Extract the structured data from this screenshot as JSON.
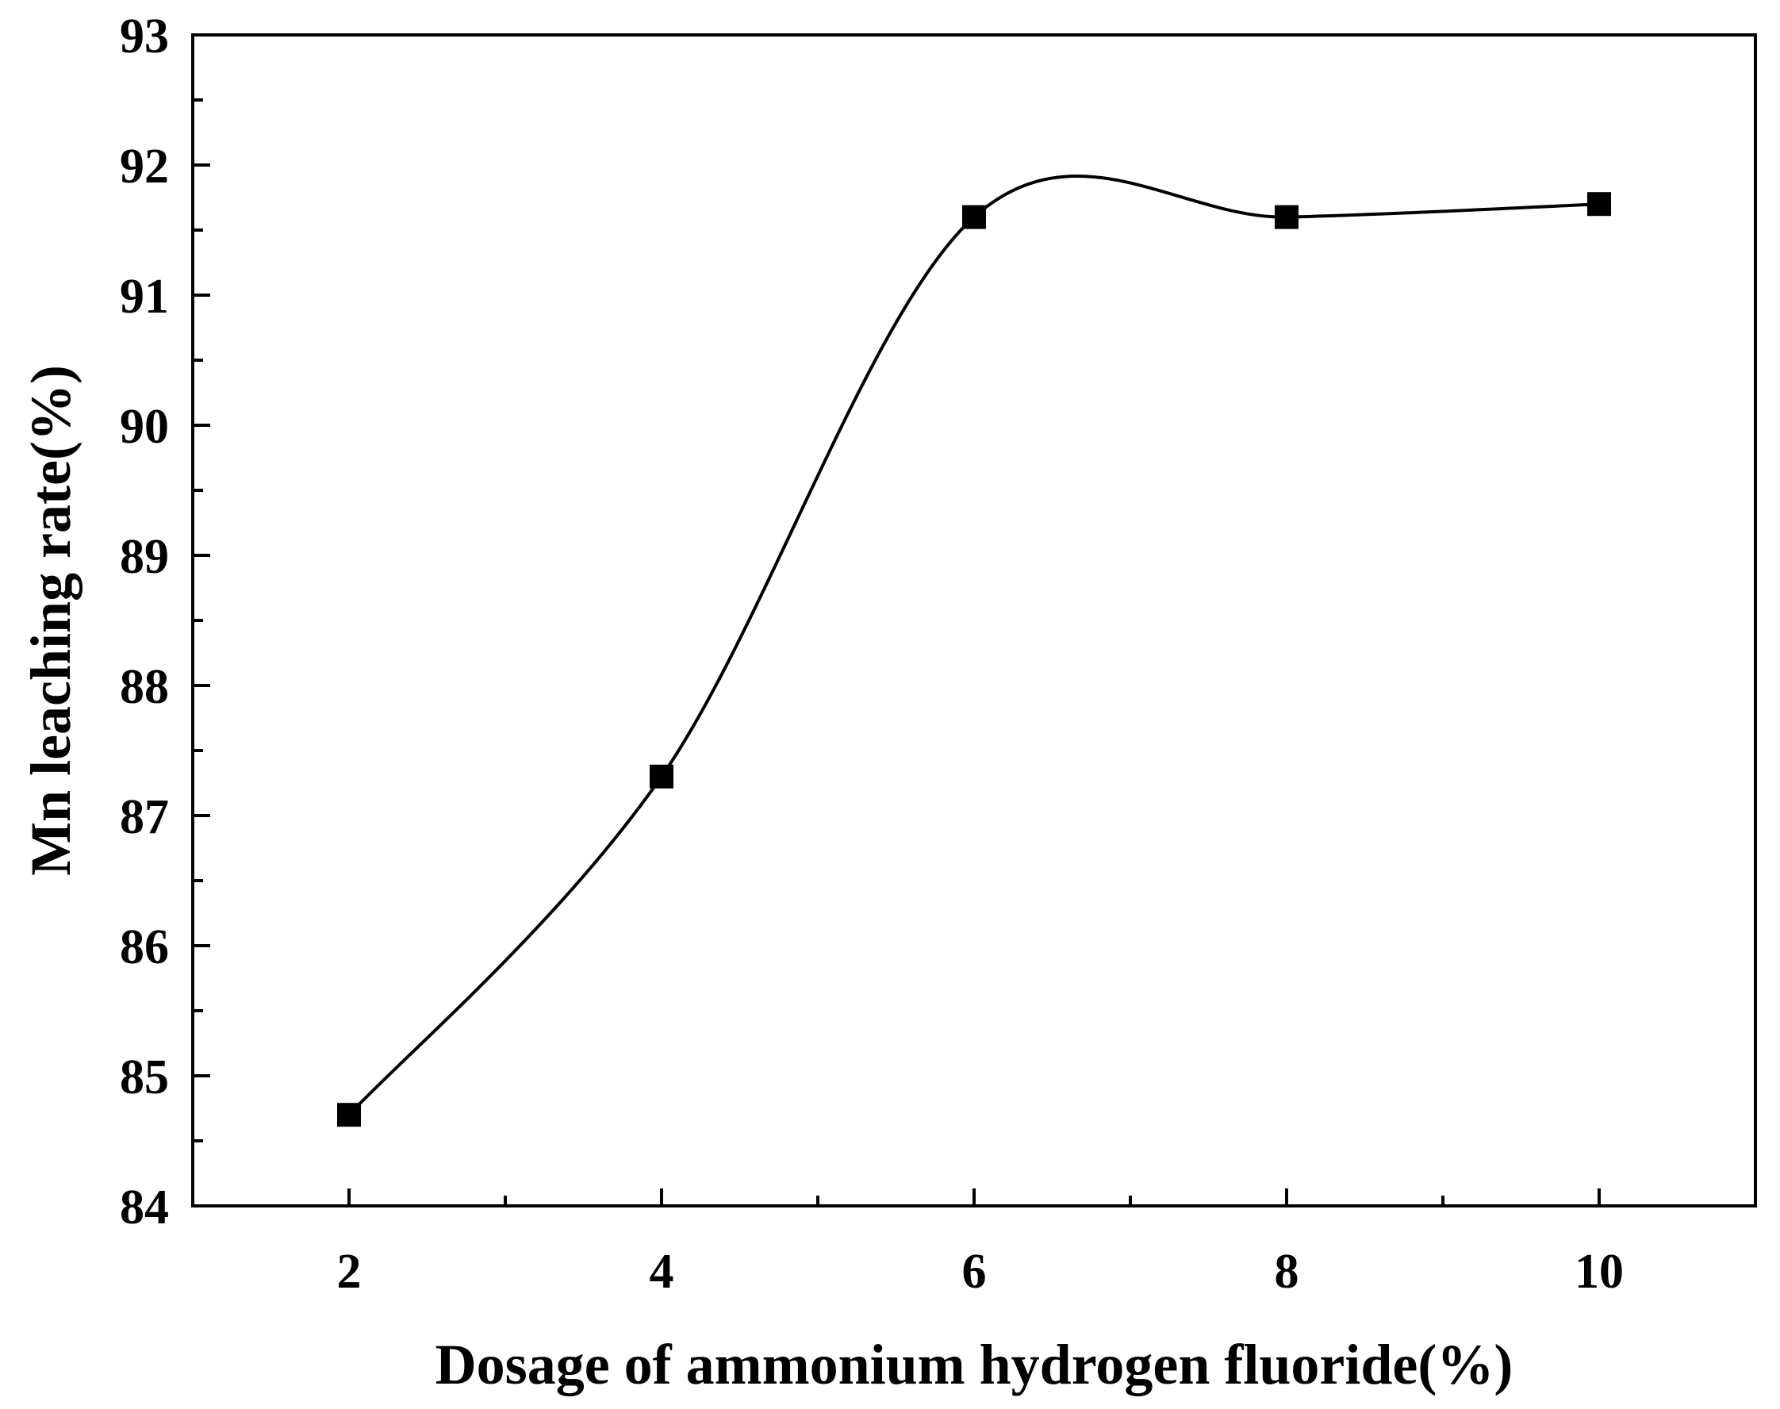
{
  "chart_data": {
    "type": "line",
    "title": "",
    "xlabel": "Dosage of ammonium hydrogen fluoride(%)",
    "ylabel": "Mn leaching rate(%)",
    "xlim": [
      1,
      11
    ],
    "ylim": [
      84,
      93
    ],
    "x_ticks": [
      2,
      4,
      6,
      8,
      10
    ],
    "x_minor_ticks": [
      3,
      5,
      7,
      9
    ],
    "y_ticks": [
      84,
      85,
      86,
      87,
      88,
      89,
      90,
      91,
      92,
      93
    ],
    "x_tick_labels": [
      "2",
      "4",
      "6",
      "8",
      "10"
    ],
    "y_tick_labels": [
      "84",
      "85",
      "86",
      "87",
      "88",
      "89",
      "90",
      "91",
      "92",
      "93"
    ],
    "grid": false,
    "legend": "none",
    "series": [
      {
        "marker": "square",
        "smooth": true,
        "color": "#000000",
        "x": [
          2,
          4,
          6,
          8,
          10
        ],
        "y": [
          84.7,
          87.3,
          91.6,
          91.6,
          91.7
        ]
      }
    ]
  }
}
